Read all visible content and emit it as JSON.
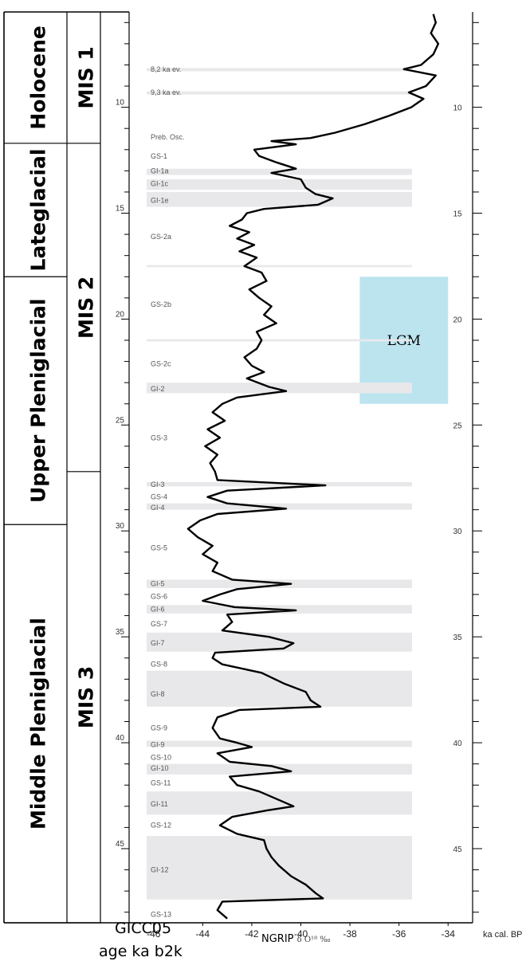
{
  "chart_data": {
    "type": "line",
    "xlabel_main": "NGRIP",
    "xlabel_symbol": "δ O¹⁸ ‰",
    "x_unit_label": "ka cal. BP",
    "left_axis_title": [
      "GICC05",
      "age ka b2k"
    ],
    "xlim": [
      -47,
      -33
    ],
    "ylim": [
      5.5,
      48.5
    ],
    "x_ticks": [
      -46,
      -44,
      -42,
      -40,
      -38,
      -36,
      -34
    ],
    "y_ticks": [
      10,
      15,
      20,
      25,
      30,
      35,
      40,
      45
    ],
    "periods": [
      {
        "label": "Holocene",
        "from": 5.5,
        "to": 11.7
      },
      {
        "label": "Lateglacial",
        "from": 11.7,
        "to": 18.0
      },
      {
        "label": "Upper Pleniglacial",
        "from": 18.0,
        "to": 29.7
      },
      {
        "label": "Middle Pleniglacial",
        "from": 29.7,
        "to": 48.5
      }
    ],
    "stages": [
      {
        "label": "MIS 1",
        "from": 5.5,
        "to": 11.7
      },
      {
        "label": "MIS 2",
        "from": 11.7,
        "to": 27.2
      },
      {
        "label": "MIS 3",
        "from": 27.2,
        "to": 48.5
      }
    ],
    "events": [
      {
        "label": "8,2 ka ev.",
        "age": 8.2
      },
      {
        "label": "9,3 ka ev.",
        "age": 9.3
      },
      {
        "label": "Preb. Osc.",
        "age": 11.4
      },
      {
        "label": "GS-1",
        "age": 12.3
      },
      {
        "label": "GI-1a",
        "age": 13.0
      },
      {
        "label": "GI-1c",
        "age": 13.6
      },
      {
        "label": "GI-1e",
        "age": 14.4
      },
      {
        "label": "GS-2a",
        "age": 16.1
      },
      {
        "label": "GS-2b",
        "age": 19.3
      },
      {
        "label": "GS-2c",
        "age": 22.1
      },
      {
        "label": "GI-2",
        "age": 23.3
      },
      {
        "label": "GS-3",
        "age": 25.6
      },
      {
        "label": "GI-3",
        "age": 27.8
      },
      {
        "label": "GS-4",
        "age": 28.4
      },
      {
        "label": "GI-4",
        "age": 28.9
      },
      {
        "label": "GS-5",
        "age": 30.8
      },
      {
        "label": "GI-5",
        "age": 32.5
      },
      {
        "label": "GS-6",
        "age": 33.1
      },
      {
        "label": "GI-6",
        "age": 33.7
      },
      {
        "label": "GS-7",
        "age": 34.4
      },
      {
        "label": "GI-7",
        "age": 35.3
      },
      {
        "label": "GS-8",
        "age": 36.3
      },
      {
        "label": "GI-8",
        "age": 37.7
      },
      {
        "label": "GS-9",
        "age": 39.3
      },
      {
        "label": "GI-9",
        "age": 40.1
      },
      {
        "label": "GS-10",
        "age": 40.7
      },
      {
        "label": "GI-10",
        "age": 41.2
      },
      {
        "label": "GS-11",
        "age": 41.9
      },
      {
        "label": "GI-11",
        "age": 42.9
      },
      {
        "label": "GS-12",
        "age": 43.9
      },
      {
        "label": "GI-12",
        "age": 46.0
      },
      {
        "label": "GS-13",
        "age": 48.1
      }
    ],
    "interstadials": [
      {
        "from": 8.15,
        "to": 8.3
      },
      {
        "from": 9.25,
        "to": 9.4
      },
      {
        "from": 12.9,
        "to": 13.2
      },
      {
        "from": 13.4,
        "to": 13.9
      },
      {
        "from": 14.0,
        "to": 14.7
      },
      {
        "from": 17.45,
        "to": 17.55
      },
      {
        "from": 20.95,
        "to": 21.05
      },
      {
        "from": 23.0,
        "to": 23.5
      },
      {
        "from": 27.7,
        "to": 27.9
      },
      {
        "from": 28.7,
        "to": 29.0
      },
      {
        "from": 32.3,
        "to": 32.7
      },
      {
        "from": 33.5,
        "to": 33.9
      },
      {
        "from": 34.8,
        "to": 35.7
      },
      {
        "from": 36.6,
        "to": 38.3
      },
      {
        "from": 39.9,
        "to": 40.2
      },
      {
        "from": 41.0,
        "to": 41.5
      },
      {
        "from": 42.3,
        "to": 43.4
      },
      {
        "from": 44.4,
        "to": 47.4
      }
    ],
    "lgm": {
      "label": "LGM",
      "from": 18.0,
      "to": 24.0,
      "x_from": -37.6,
      "x_to": -34.0,
      "color": "#bce4ef"
    },
    "series": [
      {
        "line_color": "#000000",
        "points": [
          [
            5.6,
            -34.6
          ],
          [
            6.0,
            -34.5
          ],
          [
            6.5,
            -34.7
          ],
          [
            7.0,
            -34.4
          ],
          [
            7.5,
            -34.6
          ],
          [
            8.0,
            -35.1
          ],
          [
            8.2,
            -35.8
          ],
          [
            8.5,
            -34.5
          ],
          [
            9.0,
            -34.9
          ],
          [
            9.3,
            -35.6
          ],
          [
            9.6,
            -35.0
          ],
          [
            10.0,
            -35.5
          ],
          [
            10.4,
            -36.4
          ],
          [
            10.8,
            -37.4
          ],
          [
            11.2,
            -38.6
          ],
          [
            11.45,
            -39.6
          ],
          [
            11.6,
            -41.2
          ],
          [
            11.75,
            -40.2
          ],
          [
            12.0,
            -41.9
          ],
          [
            12.3,
            -41.7
          ],
          [
            12.6,
            -41.0
          ],
          [
            12.9,
            -40.2
          ],
          [
            13.1,
            -41.2
          ],
          [
            13.4,
            -40.0
          ],
          [
            13.8,
            -39.8
          ],
          [
            14.1,
            -39.4
          ],
          [
            14.3,
            -38.7
          ],
          [
            14.6,
            -39.3
          ],
          [
            14.8,
            -41.5
          ],
          [
            15.0,
            -42.2
          ],
          [
            15.3,
            -42.4
          ],
          [
            15.6,
            -42.9
          ],
          [
            15.9,
            -42.1
          ],
          [
            16.2,
            -42.6
          ],
          [
            16.5,
            -41.9
          ],
          [
            16.8,
            -42.5
          ],
          [
            17.1,
            -41.8
          ],
          [
            17.5,
            -42.3
          ],
          [
            17.8,
            -41.6
          ],
          [
            18.2,
            -41.4
          ],
          [
            18.6,
            -42.1
          ],
          [
            19.0,
            -41.7
          ],
          [
            19.4,
            -41.2
          ],
          [
            19.8,
            -41.5
          ],
          [
            20.2,
            -41.0
          ],
          [
            20.6,
            -41.8
          ],
          [
            21.0,
            -41.6
          ],
          [
            21.4,
            -41.8
          ],
          [
            21.8,
            -42.3
          ],
          [
            22.2,
            -42.0
          ],
          [
            22.5,
            -41.5
          ],
          [
            22.8,
            -42.2
          ],
          [
            23.2,
            -41.3
          ],
          [
            23.4,
            -40.6
          ],
          [
            23.7,
            -42.6
          ],
          [
            24.0,
            -43.2
          ],
          [
            24.4,
            -43.6
          ],
          [
            24.8,
            -43.1
          ],
          [
            25.2,
            -43.8
          ],
          [
            25.6,
            -43.3
          ],
          [
            26.0,
            -43.9
          ],
          [
            26.4,
            -43.4
          ],
          [
            26.8,
            -43.7
          ],
          [
            27.2,
            -43.5
          ],
          [
            27.6,
            -43.4
          ],
          [
            27.85,
            -39.0
          ],
          [
            28.1,
            -43.0
          ],
          [
            28.4,
            -43.8
          ],
          [
            28.7,
            -43.0
          ],
          [
            28.95,
            -40.6
          ],
          [
            29.2,
            -43.4
          ],
          [
            29.5,
            -44.1
          ],
          [
            29.9,
            -44.6
          ],
          [
            30.3,
            -44.2
          ],
          [
            30.7,
            -43.6
          ],
          [
            31.1,
            -44.0
          ],
          [
            31.5,
            -43.4
          ],
          [
            31.9,
            -43.6
          ],
          [
            32.3,
            -42.8
          ],
          [
            32.5,
            -40.4
          ],
          [
            32.75,
            -42.6
          ],
          [
            33.0,
            -43.3
          ],
          [
            33.3,
            -44.0
          ],
          [
            33.6,
            -42.7
          ],
          [
            33.75,
            -40.2
          ],
          [
            33.95,
            -43.0
          ],
          [
            34.3,
            -42.8
          ],
          [
            34.7,
            -43.2
          ],
          [
            35.0,
            -41.3
          ],
          [
            35.3,
            -40.3
          ],
          [
            35.55,
            -40.7
          ],
          [
            35.75,
            -43.5
          ],
          [
            36.0,
            -43.6
          ],
          [
            36.3,
            -43.2
          ],
          [
            36.7,
            -41.6
          ],
          [
            37.2,
            -40.7
          ],
          [
            37.6,
            -39.8
          ],
          [
            38.0,
            -39.6
          ],
          [
            38.3,
            -39.2
          ],
          [
            38.45,
            -42.5
          ],
          [
            38.8,
            -43.4
          ],
          [
            39.3,
            -43.6
          ],
          [
            39.8,
            -43.3
          ],
          [
            40.0,
            -42.6
          ],
          [
            40.2,
            -42.0
          ],
          [
            40.5,
            -43.4
          ],
          [
            40.9,
            -42.9
          ],
          [
            41.1,
            -41.2
          ],
          [
            41.35,
            -40.4
          ],
          [
            41.6,
            -42.9
          ],
          [
            42.0,
            -42.6
          ],
          [
            42.3,
            -41.7
          ],
          [
            42.7,
            -40.9
          ],
          [
            43.0,
            -40.3
          ],
          [
            43.2,
            -41.4
          ],
          [
            43.5,
            -42.8
          ],
          [
            43.9,
            -43.3
          ],
          [
            44.3,
            -42.6
          ],
          [
            44.6,
            -41.5
          ],
          [
            45.0,
            -41.4
          ],
          [
            45.4,
            -41.2
          ],
          [
            45.8,
            -40.9
          ],
          [
            46.3,
            -40.4
          ],
          [
            46.7,
            -39.8
          ],
          [
            47.1,
            -39.4
          ],
          [
            47.35,
            -39.1
          ],
          [
            47.5,
            -43.2
          ],
          [
            47.9,
            -43.4
          ],
          [
            48.3,
            -43.0
          ]
        ]
      }
    ]
  }
}
